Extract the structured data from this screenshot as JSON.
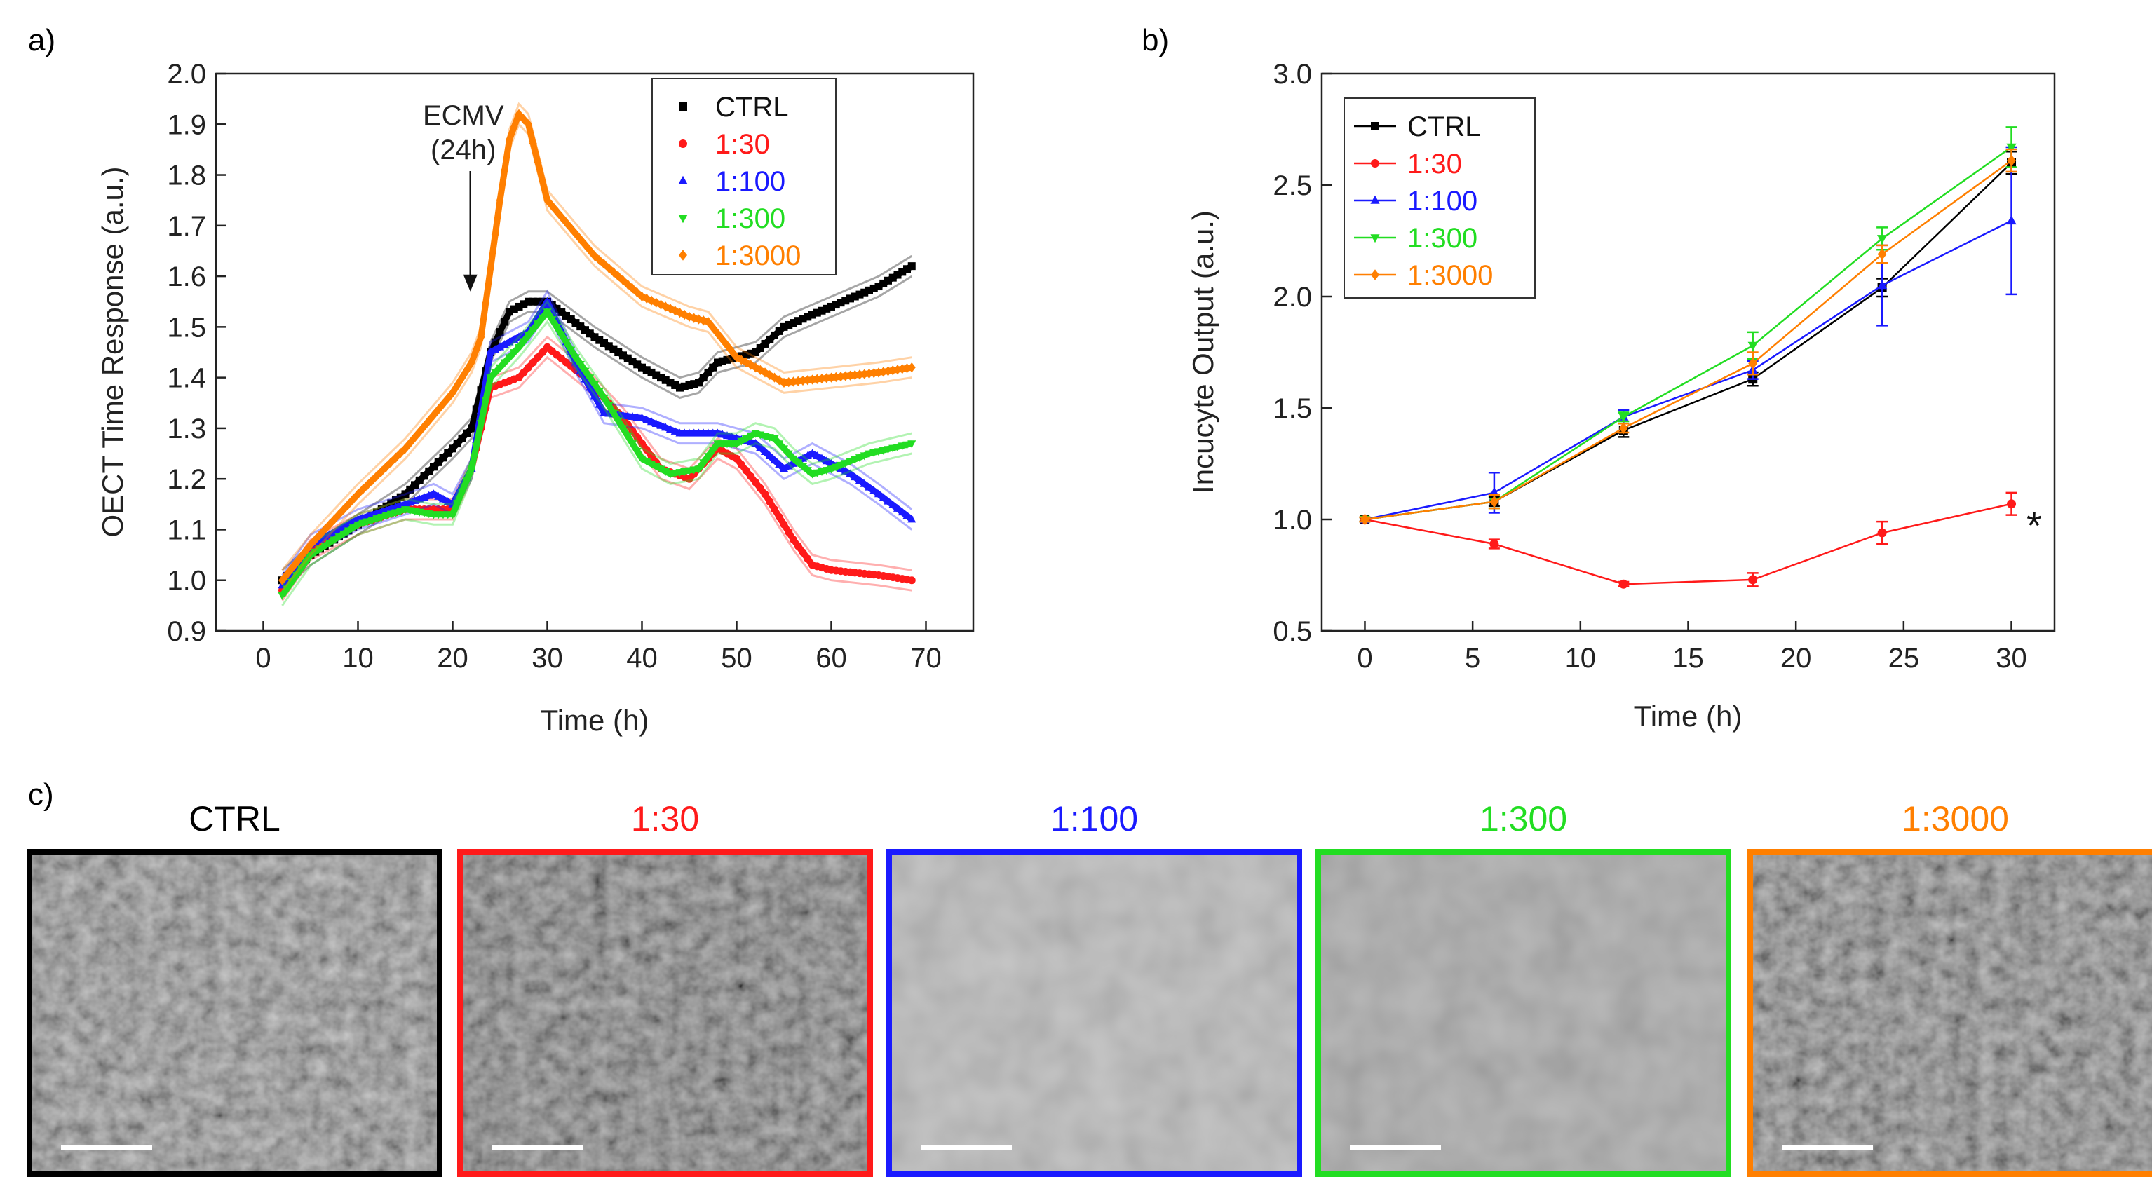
{
  "panels": {
    "a": {
      "letter": "a)"
    },
    "b": {
      "letter": "b)"
    },
    "c": {
      "letter": "c)"
    }
  },
  "colors": {
    "CTRL": "#000000",
    "1:30": "#ff1a1a",
    "1:100": "#1a1aff",
    "1:300": "#22dd22",
    "1:3000": "#ff7f00"
  },
  "chart_data": [
    {
      "id": "a",
      "type": "line",
      "title": "",
      "xlabel": "Time (h)",
      "ylabel": "OECT Time Response (a.u.)",
      "xlim": [
        -5,
        75
      ],
      "ylim": [
        0.9,
        2.0
      ],
      "xticks": [
        0,
        10,
        20,
        30,
        40,
        50,
        60,
        70
      ],
      "yticks": [
        0.9,
        1.0,
        1.1,
        1.2,
        1.3,
        1.4,
        1.5,
        1.6,
        1.7,
        1.8,
        1.9,
        2.0
      ],
      "legend_position": "top-right",
      "annotation": {
        "lines": [
          "ECMV",
          "(24h)"
        ],
        "x": 21.5,
        "y": 1.57
      },
      "series": [
        {
          "name": "CTRL",
          "marker": "square",
          "points": [
            [
              2,
              1.0
            ],
            [
              5,
              1.05
            ],
            [
              10,
              1.11
            ],
            [
              15,
              1.17
            ],
            [
              20,
              1.26
            ],
            [
              22,
              1.3
            ],
            [
              24,
              1.45
            ],
            [
              26,
              1.53
            ],
            [
              28,
              1.55
            ],
            [
              30,
              1.55
            ],
            [
              35,
              1.48
            ],
            [
              40,
              1.42
            ],
            [
              44,
              1.38
            ],
            [
              46,
              1.39
            ],
            [
              48,
              1.43
            ],
            [
              52,
              1.45
            ],
            [
              55,
              1.5
            ],
            [
              60,
              1.54
            ],
            [
              65,
              1.58
            ],
            [
              68.5,
              1.62
            ]
          ]
        },
        {
          "name": "1:30",
          "marker": "circle",
          "points": [
            [
              2,
              0.98
            ],
            [
              5,
              1.06
            ],
            [
              10,
              1.11
            ],
            [
              15,
              1.14
            ],
            [
              20,
              1.14
            ],
            [
              22,
              1.22
            ],
            [
              24,
              1.38
            ],
            [
              27,
              1.4
            ],
            [
              30,
              1.46
            ],
            [
              34,
              1.4
            ],
            [
              38,
              1.32
            ],
            [
              42,
              1.22
            ],
            [
              45,
              1.2
            ],
            [
              48,
              1.26
            ],
            [
              50,
              1.24
            ],
            [
              53,
              1.17
            ],
            [
              56,
              1.08
            ],
            [
              58,
              1.03
            ],
            [
              60,
              1.02
            ],
            [
              65,
              1.01
            ],
            [
              68.5,
              1.0
            ]
          ]
        },
        {
          "name": "1:100",
          "marker": "triangle-up",
          "points": [
            [
              2,
              0.99
            ],
            [
              5,
              1.07
            ],
            [
              10,
              1.12
            ],
            [
              15,
              1.15
            ],
            [
              18,
              1.17
            ],
            [
              20,
              1.15
            ],
            [
              22,
              1.22
            ],
            [
              24,
              1.45
            ],
            [
              26,
              1.47
            ],
            [
              28,
              1.49
            ],
            [
              30,
              1.55
            ],
            [
              33,
              1.43
            ],
            [
              36,
              1.33
            ],
            [
              40,
              1.32
            ],
            [
              44,
              1.29
            ],
            [
              48,
              1.29
            ],
            [
              52,
              1.27
            ],
            [
              55,
              1.22
            ],
            [
              58,
              1.25
            ],
            [
              62,
              1.21
            ],
            [
              65,
              1.17
            ],
            [
              68.5,
              1.12
            ]
          ]
        },
        {
          "name": "1:300",
          "marker": "triangle-down",
          "points": [
            [
              2,
              0.97
            ],
            [
              5,
              1.05
            ],
            [
              10,
              1.11
            ],
            [
              15,
              1.14
            ],
            [
              18,
              1.13
            ],
            [
              20,
              1.13
            ],
            [
              22,
              1.22
            ],
            [
              24,
              1.4
            ],
            [
              27,
              1.46
            ],
            [
              30,
              1.53
            ],
            [
              33,
              1.44
            ],
            [
              36,
              1.36
            ],
            [
              40,
              1.24
            ],
            [
              43,
              1.21
            ],
            [
              46,
              1.22
            ],
            [
              48,
              1.27
            ],
            [
              50,
              1.27
            ],
            [
              52,
              1.29
            ],
            [
              54,
              1.28
            ],
            [
              56,
              1.24
            ],
            [
              58,
              1.21
            ],
            [
              60,
              1.22
            ],
            [
              64,
              1.25
            ],
            [
              68.5,
              1.27
            ]
          ]
        },
        {
          "name": "1:3000",
          "marker": "diamond",
          "points": [
            [
              2,
              1.0
            ],
            [
              5,
              1.07
            ],
            [
              10,
              1.17
            ],
            [
              15,
              1.26
            ],
            [
              20,
              1.37
            ],
            [
              22,
              1.43
            ],
            [
              23,
              1.48
            ],
            [
              25,
              1.75
            ],
            [
              26,
              1.87
            ],
            [
              27,
              1.92
            ],
            [
              28,
              1.9
            ],
            [
              30,
              1.75
            ],
            [
              35,
              1.64
            ],
            [
              40,
              1.56
            ],
            [
              45,
              1.52
            ],
            [
              47,
              1.51
            ],
            [
              50,
              1.44
            ],
            [
              55,
              1.39
            ],
            [
              60,
              1.4
            ],
            [
              65,
              1.41
            ],
            [
              68.5,
              1.42
            ]
          ]
        }
      ]
    },
    {
      "id": "b",
      "type": "line",
      "title": "",
      "xlabel": "Time (h)",
      "ylabel": "Incucyte Output (a.u.)",
      "xlim": [
        -2,
        32
      ],
      "ylim": [
        0.5,
        3.0
      ],
      "xticks": [
        0,
        5,
        10,
        15,
        20,
        25,
        30
      ],
      "yticks": [
        0.5,
        1.0,
        1.5,
        2.0,
        2.5,
        3.0
      ],
      "legend_position": "top-left",
      "annotation": {
        "text": "*",
        "x": 30.7,
        "y": 1.0
      },
      "x": [
        0,
        6,
        12,
        18,
        24,
        30
      ],
      "series": [
        {
          "name": "CTRL",
          "marker": "square",
          "values": [
            1.0,
            1.08,
            1.4,
            1.63,
            2.04,
            2.6
          ],
          "errors": [
            0.01,
            0.02,
            0.03,
            0.03,
            0.04,
            0.05
          ]
        },
        {
          "name": "1:30",
          "marker": "circle",
          "values": [
            1.0,
            0.89,
            0.71,
            0.73,
            0.94,
            1.07
          ],
          "errors": [
            0.01,
            0.02,
            0.01,
            0.03,
            0.05,
            0.05
          ]
        },
        {
          "name": "1:100",
          "marker": "triangle-up",
          "values": [
            1.0,
            1.12,
            1.46,
            1.67,
            2.05,
            2.34
          ],
          "errors": [
            0.01,
            0.09,
            0.03,
            0.04,
            0.18,
            0.33
          ]
        },
        {
          "name": "1:300",
          "marker": "triangle-down",
          "values": [
            1.0,
            1.08,
            1.46,
            1.78,
            2.26,
            2.67
          ],
          "errors": [
            0.01,
            0.03,
            0.02,
            0.06,
            0.05,
            0.09
          ]
        },
        {
          "name": "1:3000",
          "marker": "diamond",
          "values": [
            1.0,
            1.08,
            1.41,
            1.7,
            2.19,
            2.61
          ],
          "errors": [
            0.01,
            0.03,
            0.02,
            0.05,
            0.04,
            0.05
          ]
        }
      ]
    }
  ],
  "micrographs": [
    {
      "label": "CTRL",
      "color": "#000000"
    },
    {
      "label": "1:30",
      "color": "#ff1a1a"
    },
    {
      "label": "1:100",
      "color": "#1a1aff"
    },
    {
      "label": "1:300",
      "color": "#22dd22"
    },
    {
      "label": "1:3000",
      "color": "#ff7f00"
    }
  ]
}
